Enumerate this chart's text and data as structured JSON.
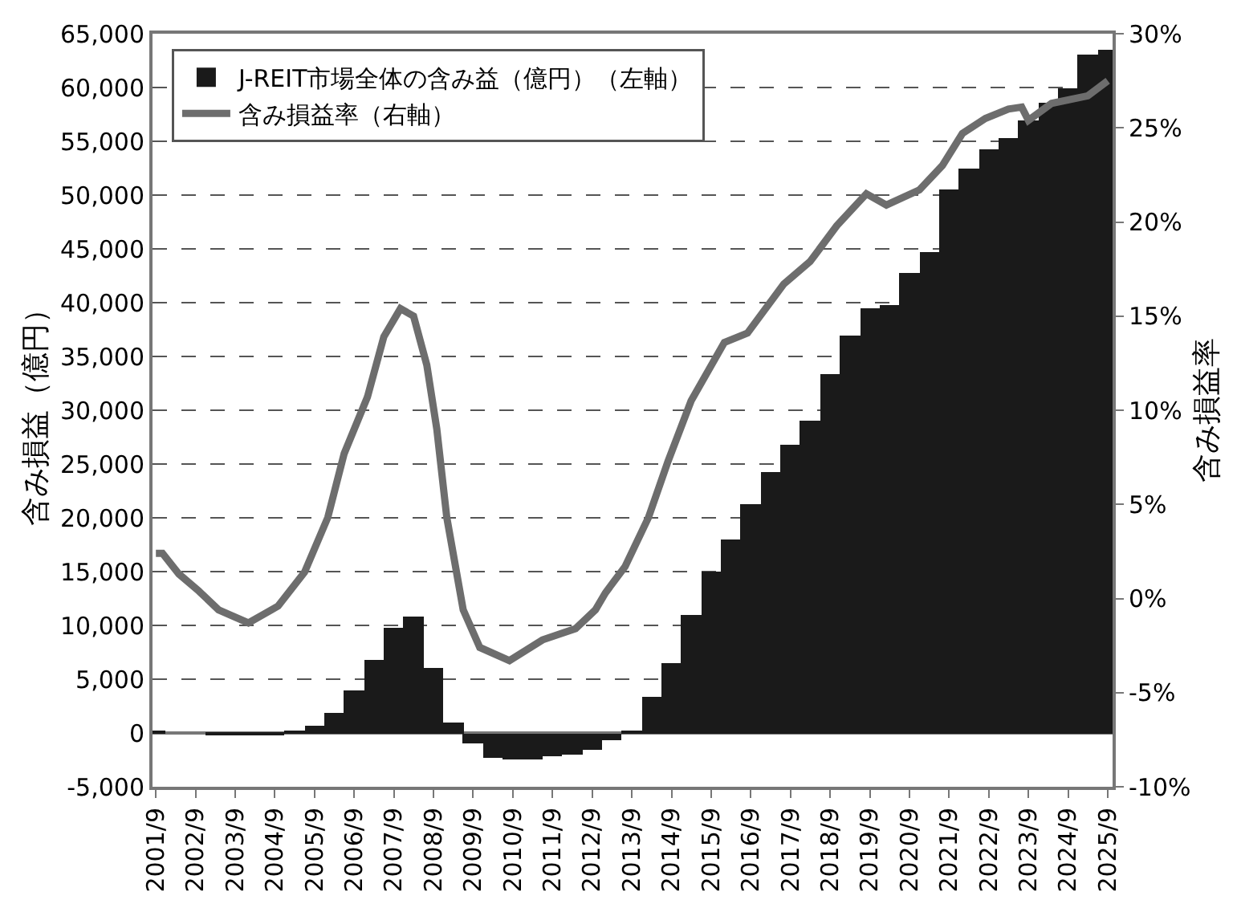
{
  "chart_data": {
    "type": "bar",
    "xlim": [
      "2001-08-01",
      "2025-10-15"
    ],
    "xticks": [
      {
        "value": "2001-09",
        "label": "2001/9"
      },
      {
        "value": "2002-09",
        "label": "2002/9"
      },
      {
        "value": "2003-09",
        "label": "2003/9"
      },
      {
        "value": "2004-09",
        "label": "2004/9"
      },
      {
        "value": "2005-09",
        "label": "2005/9"
      },
      {
        "value": "2006-09",
        "label": "2006/9"
      },
      {
        "value": "2007-09",
        "label": "2007/9"
      },
      {
        "value": "2008-09",
        "label": "2008/9"
      },
      {
        "value": "2009-09",
        "label": "2009/9"
      },
      {
        "value": "2010-09",
        "label": "2010/9"
      },
      {
        "value": "2011-09",
        "label": "2011/9"
      },
      {
        "value": "2012-09",
        "label": "2012/9"
      },
      {
        "value": "2013-09",
        "label": "2013/9"
      },
      {
        "value": "2014-09",
        "label": "2014/9"
      },
      {
        "value": "2015-09",
        "label": "2015/9"
      },
      {
        "value": "2016-09",
        "label": "2016/9"
      },
      {
        "value": "2017-09",
        "label": "2017/9"
      },
      {
        "value": "2018-09",
        "label": "2018/9"
      },
      {
        "value": "2019-09",
        "label": "2019/9"
      },
      {
        "value": "2020-09",
        "label": "2020/9"
      },
      {
        "value": "2021-09",
        "label": "2021/9"
      },
      {
        "value": "2022-09",
        "label": "2022/9"
      },
      {
        "value": "2023-09",
        "label": "2023/9"
      },
      {
        "value": "2024-09",
        "label": "2024/9"
      },
      {
        "value": "2025-09",
        "label": "2025/9"
      }
    ],
    "ylabel": "含み損益（億円）",
    "y2label": "含み損益率",
    "ylim": [
      -5000,
      65000
    ],
    "yticks": [
      {
        "value": -5000,
        "label": "-5,000"
      },
      0,
      {
        "value": 5000,
        "label": "5,000"
      },
      {
        "value": 10000,
        "label": "10,000"
      },
      {
        "value": 15000,
        "label": "15,000"
      },
      {
        "value": 20000,
        "label": "20,000"
      },
      {
        "value": 25000,
        "label": "25,000"
      },
      {
        "value": 30000,
        "label": "30,000"
      },
      {
        "value": 35000,
        "label": "35,000"
      },
      {
        "value": 40000,
        "label": "40,000"
      },
      {
        "value": 45000,
        "label": "45,000"
      },
      {
        "value": 50000,
        "label": "50,000"
      },
      {
        "value": 55000,
        "label": "55,000"
      },
      {
        "value": 60000,
        "label": "60,000"
      },
      {
        "value": 65000,
        "label": "65,000"
      }
    ],
    "y2lim": [
      -10,
      30
    ],
    "y2ticks": [
      {
        "value": -10,
        "label": "-10%"
      },
      {
        "value": -5,
        "label": "-5%"
      },
      {
        "value": 0,
        "label": "0%"
      },
      {
        "value": 5,
        "label": "5%"
      },
      {
        "value": 10,
        "label": "10%"
      },
      {
        "value": 15,
        "label": "15%"
      },
      {
        "value": 20,
        "label": "20%"
      },
      {
        "value": 25,
        "label": "25%"
      },
      {
        "value": 30,
        "label": "30%"
      }
    ],
    "grid": "y",
    "legend": "top left",
    "series": [
      {
        "name": "J-REIT市場全体の含み益（億円）（左軸）",
        "color": "#1a1a1a",
        "x": [
          "2001-09",
          "2002-03",
          "2002-09",
          "2003-03",
          "2003-09",
          "2004-03",
          "2004-09",
          "2005-03",
          "2005-09",
          "2006-03",
          "2006-09",
          "2007-03",
          "2007-09",
          "2008-03",
          "2008-09",
          "2009-03",
          "2009-09",
          "2010-03",
          "2010-09",
          "2011-03",
          "2011-09",
          "2012-03",
          "2012-09",
          "2013-03",
          "2013-09",
          "2014-03",
          "2014-09",
          "2015-03",
          "2015-09",
          "2016-03",
          "2016-09",
          "2017-03",
          "2017-09",
          "2018-03",
          "2018-09",
          "2019-03",
          "2019-09",
          "2020-03",
          "2020-09",
          "2021-03",
          "2021-09",
          "2022-03",
          "2022-09",
          "2023-03",
          "2023-09",
          "2024-03",
          "2024-09",
          "2025-03",
          "2025-09"
        ],
        "values": [
          100,
          0,
          0,
          -100,
          -200,
          -200,
          -100,
          100,
          700,
          1800,
          4000,
          6800,
          9800,
          10800,
          6000,
          1000,
          -1000,
          -2300,
          -2500,
          -2400,
          -2200,
          -2000,
          -1500,
          -600,
          200,
          3300,
          6500,
          11000,
          15000,
          18000,
          21300,
          24200,
          26800,
          29000,
          33300,
          37000,
          39500,
          39800,
          42800,
          44700,
          50500,
          52500,
          54200,
          55300,
          57000,
          58600,
          60000,
          63100,
          63500
        ]
      },
      {
        "name": "含み損益率（右軸）",
        "type": "line",
        "axis": "y2",
        "color": "#6d6d6d",
        "x": [
          "2001-09",
          "2001-11",
          "2002-04",
          "2002-10",
          "2003-04",
          "2004-01",
          "2004-10",
          "2005-06",
          "2006-01",
          "2006-06",
          "2007-01",
          "2007-06",
          "2007-11",
          "2008-03",
          "2008-07",
          "2008-10",
          "2009-01",
          "2009-06",
          "2009-11",
          "2010-08",
          "2011-06",
          "2012-04",
          "2012-10",
          "2013-01",
          "2013-07",
          "2014-02",
          "2014-08",
          "2015-03",
          "2016-01",
          "2016-08",
          "2017-07",
          "2018-03",
          "2018-11",
          "2019-08",
          "2020-02",
          "2020-12",
          "2021-07",
          "2022-01",
          "2022-08",
          "2023-03",
          "2023-07",
          "2023-09",
          "2024-04",
          "2025-03",
          "2025-09"
        ],
        "values": [
          2.4,
          2.4,
          1.3,
          0.4,
          -0.6,
          -1.3,
          -0.4,
          1.4,
          4.3,
          7.7,
          10.7,
          13.9,
          15.4,
          15.0,
          12.4,
          9.0,
          4.3,
          -0.6,
          -2.6,
          -3.3,
          -2.2,
          -1.6,
          -0.6,
          0.3,
          1.7,
          4.3,
          7.3,
          10.5,
          13.6,
          14.1,
          16.7,
          17.9,
          19.8,
          21.5,
          20.9,
          21.7,
          23.0,
          24.7,
          25.5,
          26.0,
          26.1,
          25.4,
          26.3,
          26.7,
          27.5
        ]
      }
    ]
  }
}
